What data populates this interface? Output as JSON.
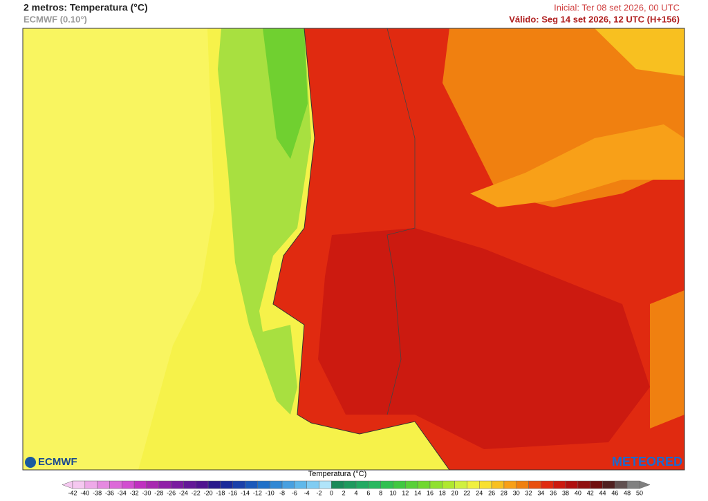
{
  "header": {
    "title": "2 metros: Temperatura (°C)",
    "model": "ECMWF (0.10°)",
    "initial": "Inicial: Ter 08 set 2026, 00 UTC",
    "valid": "Válido: Seg 14 set 2026, 12 UTC (H+156)"
  },
  "logos": {
    "left": "ECMWF",
    "right": "METEORED"
  },
  "colorbar": {
    "label": "Temperatura (°C)",
    "ticks": [
      -42,
      -40,
      -38,
      -36,
      -34,
      -32,
      -30,
      -28,
      -26,
      -24,
      -22,
      -20,
      -18,
      -16,
      -14,
      -12,
      -10,
      -8,
      -6,
      -4,
      -2,
      0,
      2,
      4,
      6,
      8,
      10,
      12,
      14,
      16,
      18,
      20,
      22,
      24,
      26,
      28,
      30,
      32,
      34,
      36,
      38,
      40,
      42,
      44,
      46,
      48,
      50
    ],
    "colors": [
      "#f5c8f0",
      "#eeaae8",
      "#e58ae0",
      "#dc6ad8",
      "#d24ed0",
      "#c030c0",
      "#a828b0",
      "#9020a8",
      "#7a1ca0",
      "#641898",
      "#501490",
      "#2a1a8c",
      "#1a2a9a",
      "#1a40aa",
      "#1a58ba",
      "#2070c8",
      "#3088d4",
      "#48a0e0",
      "#60b8ea",
      "#80ccf2",
      "#b0e4fa",
      "#1a8a5a",
      "#1e9a5e",
      "#22aa62",
      "#28b860",
      "#30c050",
      "#40c840",
      "#58d038",
      "#70d830",
      "#90e030",
      "#b0e830",
      "#d0f040",
      "#f0f040",
      "#f8e030",
      "#f8c020",
      "#f8a018",
      "#f08010",
      "#e85010",
      "#e02a10",
      "#cc1a10",
      "#b01010",
      "#901010",
      "#701010",
      "#502020",
      "#605050",
      "#808080"
    ]
  }
}
